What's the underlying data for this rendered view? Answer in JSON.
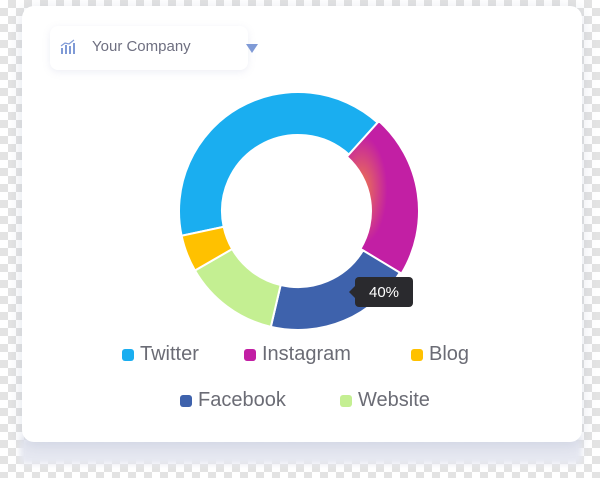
{
  "header": {
    "company_label": "Your Company",
    "icon": "bar-chart-icon",
    "dropdown_icon": "caret-down-icon",
    "accent_color": "#7f9ad6"
  },
  "tooltip": {
    "text": "40%",
    "series": "Twitter"
  },
  "colors": {
    "twitter": "#1aaef0",
    "instagram": "#c21fa4",
    "instagram_glow": "#f07b4c",
    "blog": "#ffc100",
    "facebook": "#3e62ac",
    "website": "#c4ef92"
  },
  "chart_data": {
    "type": "pie",
    "donut": true,
    "categories": [
      "Twitter",
      "Instagram",
      "Facebook",
      "Website",
      "Blog"
    ],
    "values": [
      40,
      22,
      20,
      13,
      5
    ],
    "highlighted": "Twitter",
    "legend": {
      "position": "bottom",
      "items": [
        {
          "label": "Twitter",
          "color": "#1aaef0"
        },
        {
          "label": "Instagram",
          "color": "#c21fa4"
        },
        {
          "label": "Blog",
          "color": "#ffc100"
        },
        {
          "label": "Facebook",
          "color": "#3e62ac"
        },
        {
          "label": "Website",
          "color": "#c4ef92"
        }
      ]
    }
  }
}
